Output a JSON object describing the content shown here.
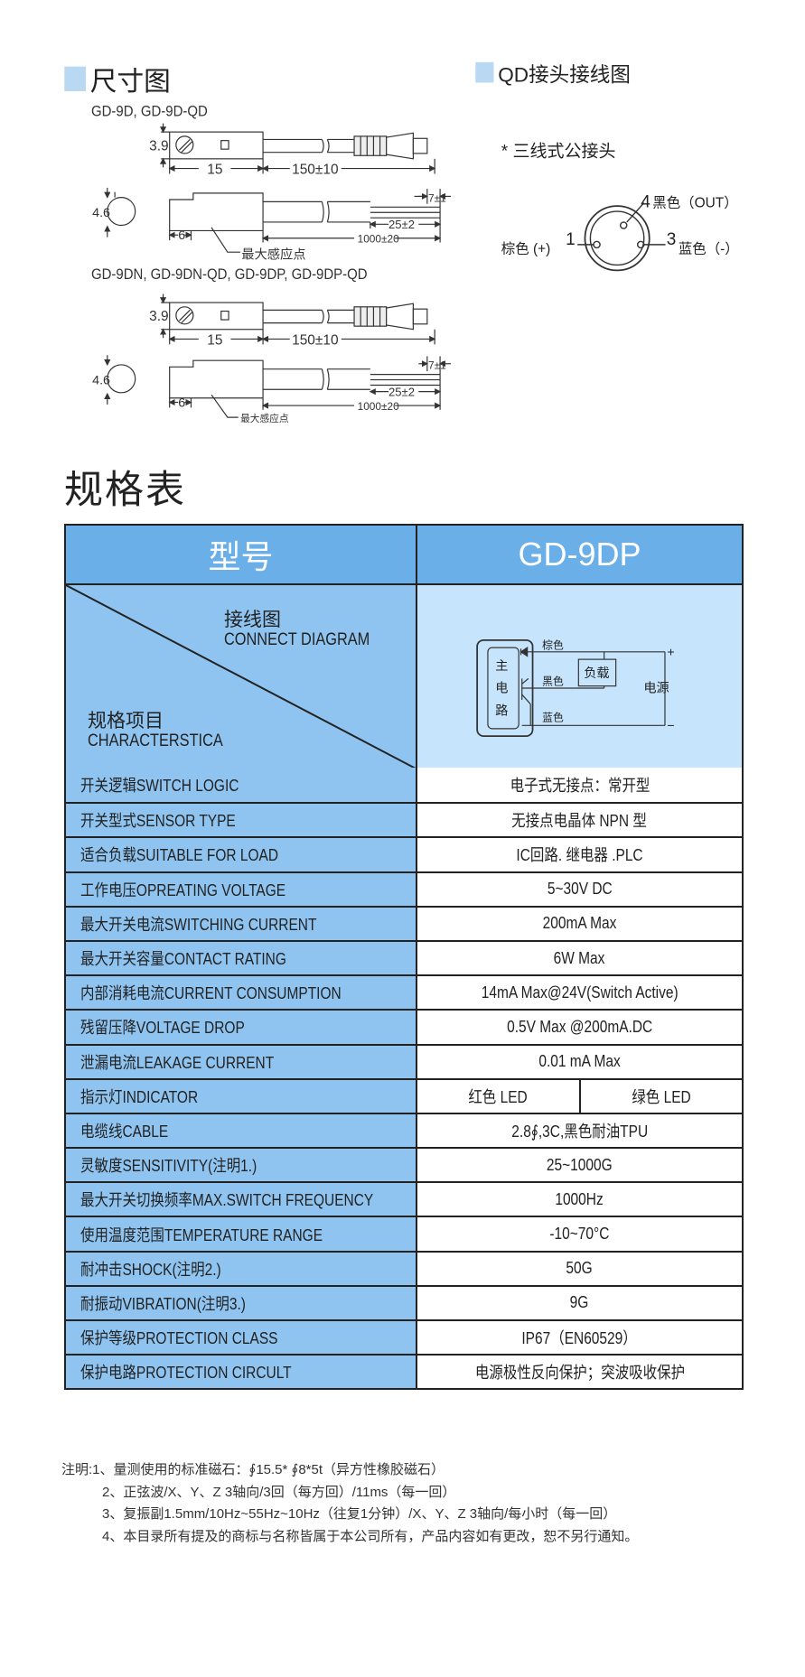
{
  "dimensions": {
    "title": "尺寸图",
    "model_group_1": "GD-9D, GD-9D-QD",
    "model_group_2": "GD-9DN, GD-9DN-QD,  GD-9DP, GD-9DP-QD",
    "dim_height_top": "3.9",
    "dim_body_len": "15",
    "dim_cable_short": "150±10",
    "dim_height_side": "4.6",
    "dim_wire_strip": "7±1",
    "dim_wire_len": "25±2",
    "dim_cable_long": "1000±20",
    "dim_sense_pos": "6",
    "sense_point_label": "最大感应点"
  },
  "qd_wiring": {
    "title": "QD接头接线图",
    "subtitle": "* 三线式公接头",
    "pin4": "4",
    "pin4_label": "黑色（OUT）",
    "pin1": "1",
    "pin1_label": "棕色 (+)",
    "pin3": "3",
    "pin3_label": "蓝色（-）"
  },
  "spec": {
    "title": "规格表",
    "header_label": "型号",
    "model": "GD-9DP",
    "diag_top_cn": "接线图",
    "diag_top_en": "CONNECT DIAGRAM",
    "diag_bottom_cn": "规格项目",
    "diag_bottom_en": "CHARACTERSTICA",
    "circuit": {
      "main_circuit": [
        "主",
        "电",
        "路"
      ],
      "brown": "棕色",
      "black": "黑色",
      "blue": "蓝色",
      "load": "负载",
      "power": "电源",
      "plus": "+",
      "minus": "−"
    },
    "header_color": "#6aafe8",
    "label_color": "#8fc4f0",
    "diagram_bg": "#c6e4fb",
    "rows": [
      {
        "label": "开关逻辑SWITCH LOGIC",
        "value": "电子式无接点：常开型"
      },
      {
        "label": "开关型式SENSOR TYPE",
        "value": "无接点电晶体 NPN 型"
      },
      {
        "label": "适合负载SUITABLE FOR LOAD",
        "value": "IC回路. 继电器 .PLC"
      },
      {
        "label": "工作电压OPREATING VOLTAGE",
        "value": "5~30V DC"
      },
      {
        "label": "最大开关电流SWITCHING CURRENT",
        "value": "200mA Max"
      },
      {
        "label": "最大开关容量CONTACT RATING",
        "value": "6W Max"
      },
      {
        "label": "内部消耗电流CURRENT CONSUMPTION",
        "value": "14mA Max@24V(Switch Active)"
      },
      {
        "label": "残留压降VOLTAGE DROP",
        "value": "0.5V Max @200mA.DC"
      },
      {
        "label": "泄漏电流LEAKAGE CURRENT",
        "value": "0.01 mA Max"
      },
      {
        "label": "指示灯INDICATOR",
        "values": [
          "红色 LED",
          "绿色 LED"
        ]
      },
      {
        "label": "电缆线CABLE",
        "value": "2.8∮,3C,黑色耐油TPU"
      },
      {
        "label": "灵敏度SENSITIVITY(注明1.)",
        "value": "25~1000G"
      },
      {
        "label": "最大开关切换频率MAX.SWITCH FREQUENCY",
        "value": "1000Hz"
      },
      {
        "label": "使用温度范围TEMPERATURE RANGE",
        "value": "-10~70°C"
      },
      {
        "label": "耐冲击SHOCK(注明2.)",
        "value": "50G"
      },
      {
        "label": "耐振动VIBRATION(注明3.)",
        "value": "9G"
      },
      {
        "label": "保护等级PROTECTION CLASS",
        "value": "IP67（EN60529）"
      },
      {
        "label": "保护电路PROTECTION CIRCULT",
        "value": "电源极性反向保护；突波吸收保护"
      }
    ]
  },
  "notes": [
    "注明:1、量测使用的标准磁石：∮15.5* ∮8*5t（异方性橡胶磁石）",
    "2、正弦波/X、Y、Z 3轴向/3回（每方回）/11ms（每一回）",
    "3、复振副1.5mm/10Hz~55Hz~10Hz（往复1分钟）/X、Y、Z 3轴向/每小时（每一回）",
    "4、本目录所有提及的商标与名称皆属于本公司所有，产品内容如有更改，恕不另行通知。"
  ]
}
